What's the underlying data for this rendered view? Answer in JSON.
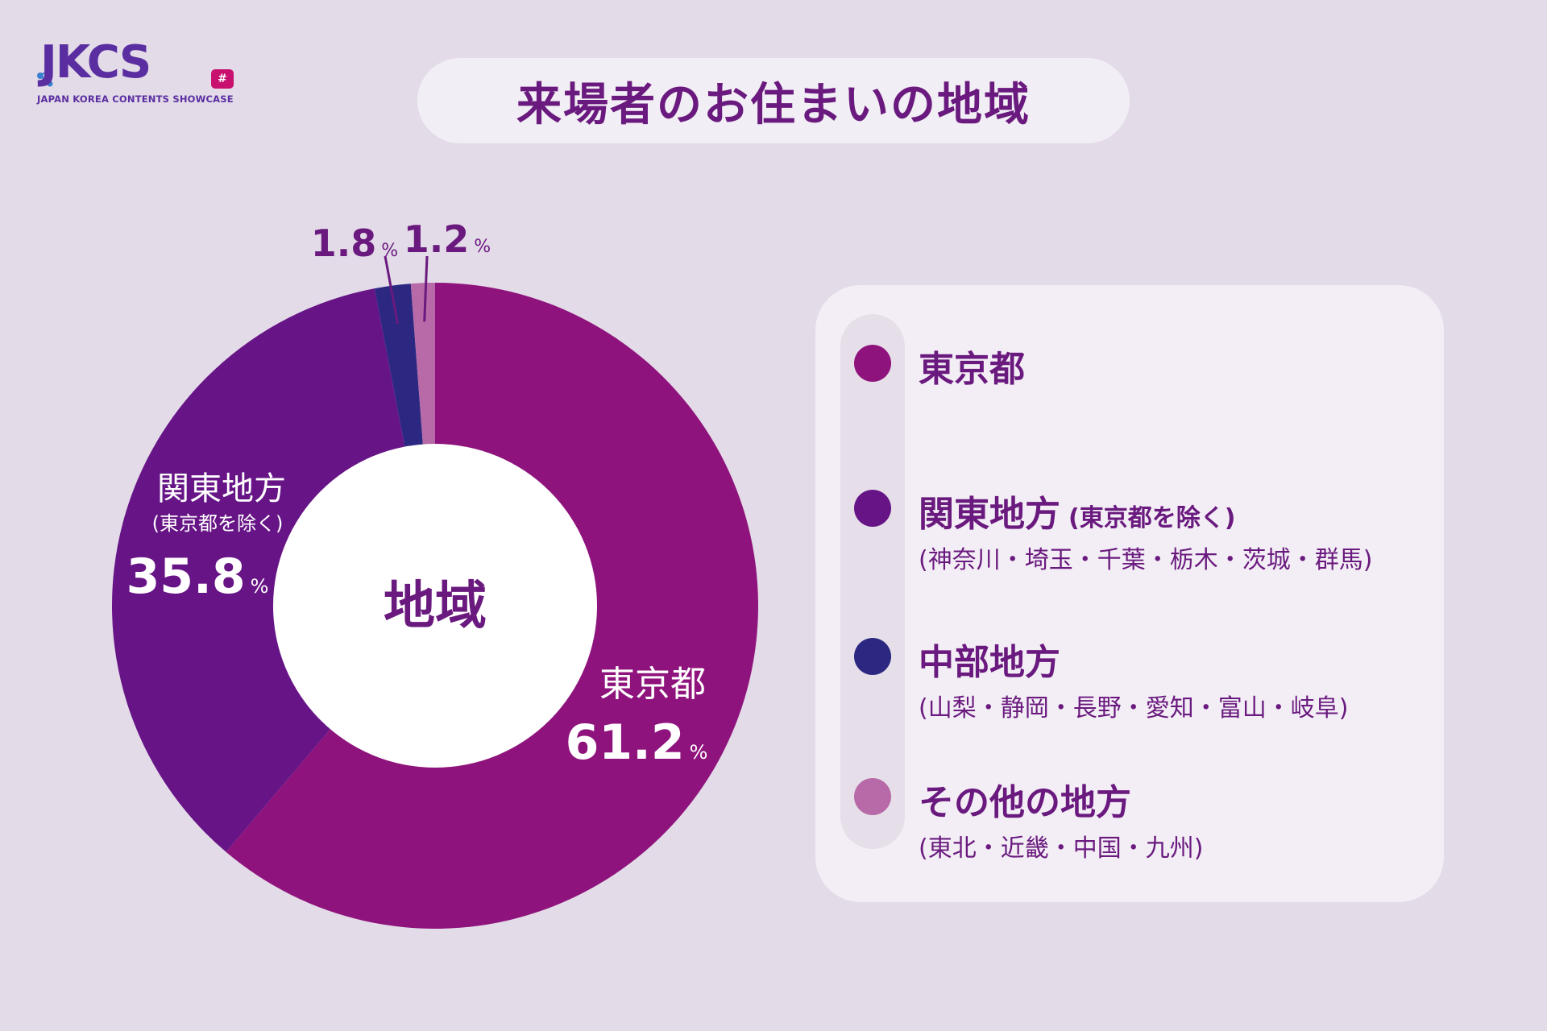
{
  "logo": {
    "mark": "JKCS",
    "badge": "#",
    "subtitle": "JAPAN KOREA CONTENTS SHOWCASE"
  },
  "title": "来場者のお住まいの地域",
  "chart_data": {
    "type": "pie",
    "donut": true,
    "center_label": "地域",
    "slices": [
      {
        "label": "東京都",
        "value": 61.2,
        "color": "#8f137c"
      },
      {
        "label": "関東地方",
        "note": "(東京都を除く)",
        "value": 35.8,
        "color": "#671487"
      },
      {
        "label": "中部地方",
        "value": 1.8,
        "color": "#2c2882"
      },
      {
        "label": "その他の地方",
        "value": 1.2,
        "color": "#b76aa7"
      }
    ],
    "unit": "%",
    "value_labels": [
      "61.2",
      "35.8",
      "1.8",
      "1.2"
    ]
  },
  "legend": {
    "items": [
      {
        "name": "東京都",
        "note": "",
        "sub": "",
        "color": "#8f137c"
      },
      {
        "name": "関東地方",
        "note": "(東京都を除く)",
        "sub": "(神奈川・埼玉・千葉・栃木・茨城・群馬)",
        "color": "#671487"
      },
      {
        "name": "中部地方",
        "note": "",
        "sub": "(山梨・静岡・長野・愛知・富山・岐阜)",
        "color": "#2c2882"
      },
      {
        "name": "その他の地方",
        "note": "",
        "sub": "(東北・近畿・中国・九州)",
        "color": "#b76aa7"
      }
    ]
  }
}
